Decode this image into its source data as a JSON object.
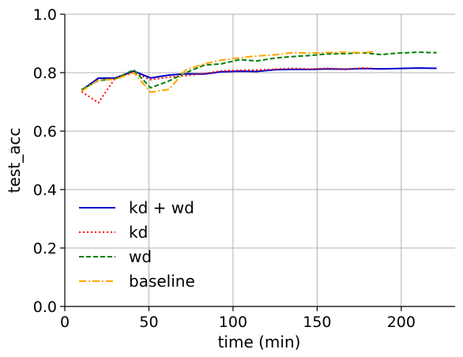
{
  "chart_data": {
    "type": "line",
    "xlabel": "time (min)",
    "ylabel": "test_acc",
    "xlim": [
      0,
      232
    ],
    "ylim": [
      0.0,
      1.0
    ],
    "xticks": [
      0,
      50,
      100,
      150,
      200
    ],
    "xtick_labels": [
      "0",
      "50",
      "100",
      "150",
      "200"
    ],
    "yticks": [
      0.0,
      0.2,
      0.4,
      0.6,
      0.8,
      1.0
    ],
    "ytick_labels": [
      "0.0",
      "0.2",
      "0.4",
      "0.6",
      "0.8",
      "1.0"
    ],
    "grid": true,
    "legend_position": "lower-left",
    "series": [
      {
        "name": "kd + wd",
        "color": "#0000cc",
        "dash": "solid",
        "x": [
          10,
          20,
          30,
          41,
          51,
          62,
          72,
          83,
          93,
          104,
          114,
          125,
          135,
          146,
          156,
          167,
          177,
          188,
          198,
          210,
          221
        ],
        "y": [
          0.74,
          0.781,
          0.782,
          0.805,
          0.782,
          0.792,
          0.796,
          0.795,
          0.803,
          0.805,
          0.804,
          0.81,
          0.811,
          0.811,
          0.813,
          0.812,
          0.814,
          0.813,
          0.814,
          0.816,
          0.815
        ]
      },
      {
        "name": "kd",
        "color": "#ff0000",
        "dash": "dotted",
        "x": [
          10,
          20,
          30,
          41,
          51,
          62,
          72,
          83,
          93,
          104,
          114,
          125,
          135,
          146,
          156,
          167,
          177,
          184
        ],
        "y": [
          0.735,
          0.697,
          0.782,
          0.8,
          0.776,
          0.785,
          0.79,
          0.797,
          0.806,
          0.808,
          0.809,
          0.812,
          0.815,
          0.812,
          0.815,
          0.812,
          0.816,
          0.815
        ]
      },
      {
        "name": "wd",
        "color": "#008000",
        "dash": "dashed",
        "x": [
          10,
          20,
          30,
          41,
          51,
          62,
          72,
          83,
          93,
          104,
          114,
          125,
          135,
          146,
          156,
          167,
          177,
          188,
          198,
          210,
          221
        ],
        "y": [
          0.742,
          0.773,
          0.779,
          0.81,
          0.748,
          0.772,
          0.8,
          0.826,
          0.83,
          0.845,
          0.84,
          0.85,
          0.855,
          0.859,
          0.864,
          0.865,
          0.868,
          0.862,
          0.867,
          0.87,
          0.868
        ]
      },
      {
        "name": "baseline",
        "color": "#ffa500",
        "dash": "dashdot",
        "x": [
          10,
          20,
          30,
          41,
          51,
          62,
          72,
          83,
          93,
          104,
          114,
          125,
          135,
          146,
          156,
          167,
          177,
          184
        ],
        "y": [
          0.737,
          0.775,
          0.777,
          0.8,
          0.733,
          0.743,
          0.81,
          0.83,
          0.843,
          0.851,
          0.857,
          0.861,
          0.868,
          0.867,
          0.869,
          0.87,
          0.868,
          0.872
        ]
      }
    ]
  }
}
